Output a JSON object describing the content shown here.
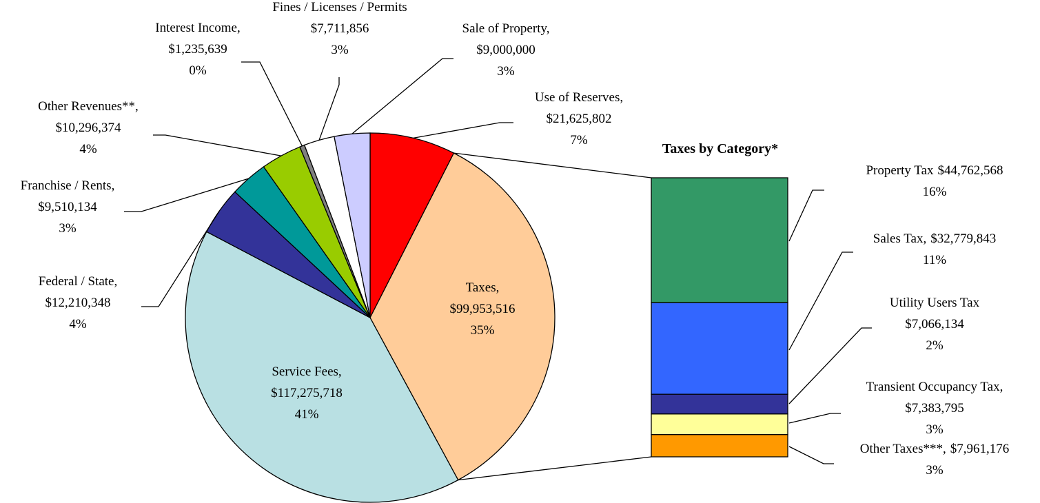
{
  "chart_data": [
    {
      "type": "pie",
      "categories": [
        "Use of Reserves,",
        "Taxes,",
        "Service Fees,",
        "Federal / State,",
        "Franchise / Rents,",
        "Other Revenues**,",
        "Interest Income,",
        "Fines / Licenses / Permits",
        "Sale of Property,"
      ],
      "values": [
        21625802,
        99953516,
        117275718,
        12210348,
        9510134,
        10296374,
        1235639,
        7711856,
        9000000
      ],
      "value_labels": [
        "$21,625,802",
        "$99,953,516",
        "$117,275,718",
        "$12,210,348",
        "$9,510,134",
        "$10,296,374",
        "$1,235,639",
        "$7,711,856",
        "$9,000,000"
      ],
      "percent_labels": [
        "7%",
        "35%",
        "41%",
        "4%",
        "3%",
        "4%",
        "0%",
        "3%",
        "3%"
      ],
      "colors": [
        "#ff0000",
        "#ffcc99",
        "#b9e0e3",
        "#333399",
        "#009999",
        "#99cc00",
        "#808080",
        "#ffffff",
        "#ccccff"
      ]
    },
    {
      "type": "bar",
      "title": "Taxes by Category*",
      "categories": [
        "Property Tax",
        "Sales Tax,",
        "Utility Users Tax",
        "Transient Occupancy Tax,",
        "Other Taxes***,"
      ],
      "values": [
        44762568,
        32779843,
        7066134,
        7383795,
        7961176
      ],
      "value_labels": [
        "$44,762,568",
        "$32,779,843",
        "$7,066,134",
        "$7,383,795",
        "$7,961,176"
      ],
      "percent_labels": [
        "16%",
        "11%",
        "2%",
        "3%",
        "3%"
      ],
      "colors": [
        "#339966",
        "#3366ff",
        "#333399",
        "#ffff99",
        "#ff9900"
      ]
    }
  ]
}
